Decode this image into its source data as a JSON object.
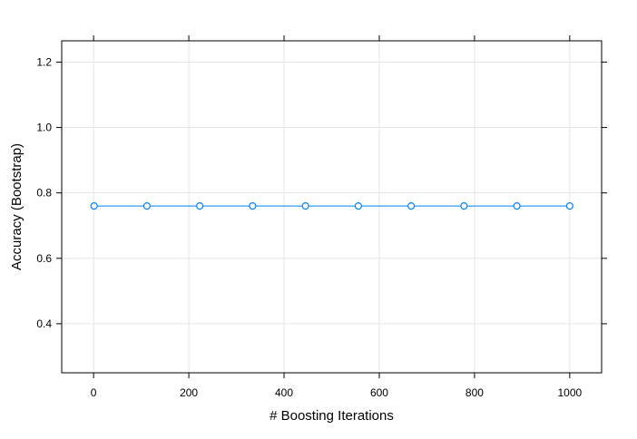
{
  "chart_data": {
    "type": "line",
    "title": "",
    "xlabel": "# Boosting Iterations",
    "ylabel": "Accuracy (Bootstrap)",
    "xlim": [
      -67,
      1067
    ],
    "ylim": [
      0.25,
      1.265
    ],
    "x_ticks": [
      0,
      200,
      400,
      600,
      800,
      1000
    ],
    "x_tick_labels": [
      "0",
      "200",
      "400",
      "600",
      "800",
      "1000"
    ],
    "y_ticks": [
      0.4,
      0.6,
      0.8,
      1.0,
      1.2
    ],
    "y_tick_labels": [
      "0.4",
      "0.6",
      "0.8",
      "1.0",
      "1.2"
    ],
    "grid": true,
    "legend": "none",
    "line_color": "#0080ff",
    "grid_color": "#e6e6e6",
    "series": [
      {
        "x": [
          1,
          112,
          223,
          334,
          445,
          556,
          667,
          778,
          889,
          1000
        ],
        "values": [
          0.76,
          0.76,
          0.76,
          0.76,
          0.76,
          0.76,
          0.76,
          0.76,
          0.76,
          0.76
        ]
      }
    ]
  }
}
